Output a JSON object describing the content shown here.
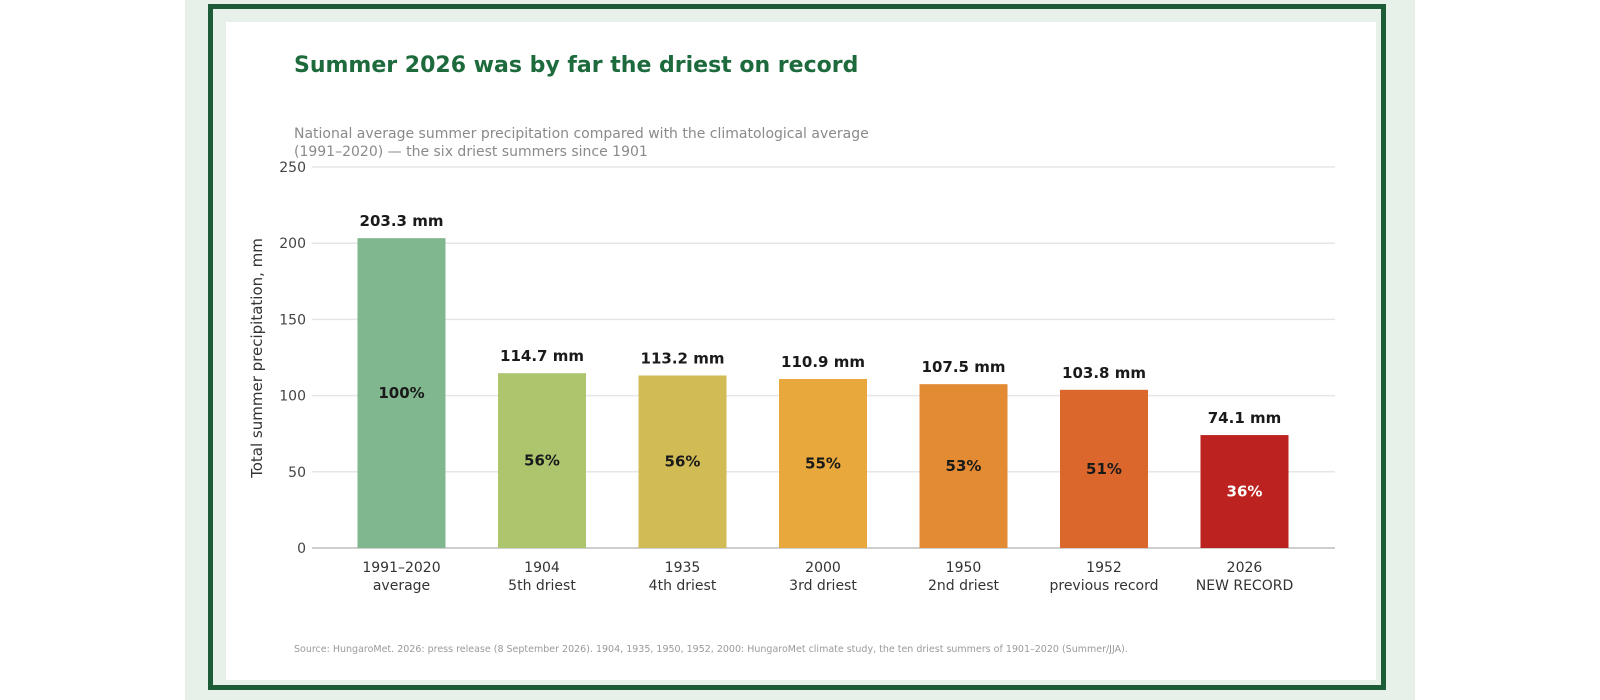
{
  "title": "Summer 2026 was by far the driest on record",
  "subtitle": "National average summer precipitation compared with the climatological average (1991–2020) — the six driest summers since 1901",
  "source": "Source: HungaroMet. 2026: press release (8 September 2026). 1904, 1935, 1950, 1952, 2000: HungaroMet climate study, the ten driest summers of 1901–2020 (Summer/JJA).",
  "chart_data": {
    "type": "bar",
    "ylabel": "Total summer precipitation, mm",
    "ylim": [
      0,
      250
    ],
    "yticks": [
      0,
      50,
      100,
      150,
      200,
      250
    ],
    "grid": true,
    "categories": [
      [
        "1991–2020",
        "average"
      ],
      [
        "1904",
        "5th driest"
      ],
      [
        "1935",
        "4th driest"
      ],
      [
        "2000",
        "3rd driest"
      ],
      [
        "1950",
        "2nd driest"
      ],
      [
        "1952",
        "previous record"
      ],
      [
        "2026",
        "NEW RECORD"
      ]
    ],
    "values": [
      203.3,
      114.7,
      113.2,
      110.9,
      107.5,
      103.8,
      74.1
    ],
    "value_labels": [
      "203.3 mm",
      "114.7 mm",
      "113.2 mm",
      "110.9 mm",
      "107.5 mm",
      "103.8 mm",
      "74.1 mm"
    ],
    "percent_labels": [
      "100%",
      "56%",
      "56%",
      "55%",
      "53%",
      "51%",
      "36%"
    ],
    "colors": [
      "#80b78f",
      "#adc66e",
      "#d1bb55",
      "#e8a83c",
      "#e38b33",
      "#dc672d",
      "#bc221f"
    ],
    "percent_label_colors": [
      "#1a1a1a",
      "#1a1a1a",
      "#1a1a1a",
      "#1a1a1a",
      "#1a1a1a",
      "#1a1a1a",
      "#ffffff"
    ],
    "grid_color": "#e6e6e6",
    "axis_color": "#bdbdbd"
  }
}
